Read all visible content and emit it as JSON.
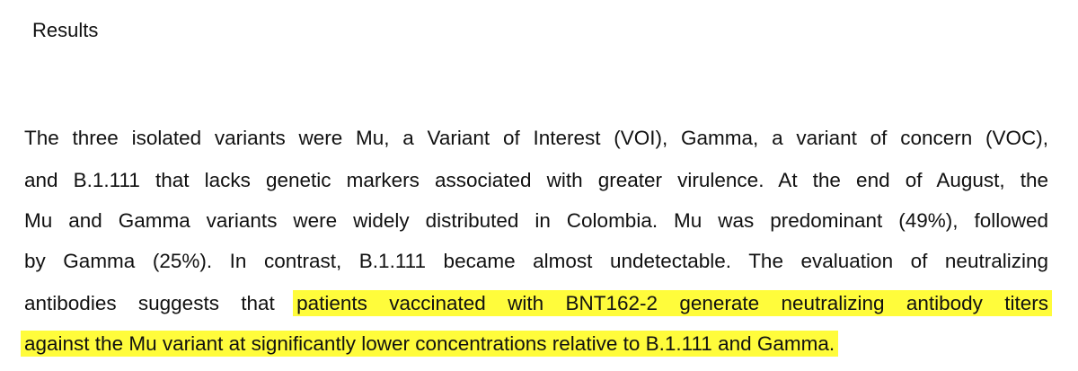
{
  "heading": "Results",
  "paragraph": {
    "lines": [
      {
        "text": "The three isolated variants were Mu, a Variant of Interest (VOI), Gamma, a variant of concern (VOC),",
        "highlight": ""
      },
      {
        "text": "and B.1.111 that lacks genetic markers associated with greater virulence. At the end of August, the",
        "highlight": ""
      },
      {
        "text": "Mu and Gamma variants were widely distributed in Colombia. Mu was predominant (49%), followed",
        "highlight": ""
      },
      {
        "text": "by Gamma (25%). In contrast, B.1.111 became almost undetectable. The evaluation of neutralizing",
        "highlight": ""
      },
      {
        "text": "antibodies suggests that ",
        "highlight": "patients vaccinated with BNT162-2 generate neutralizing antibody titers"
      },
      {
        "text": "",
        "highlight": "against the Mu variant at significantly lower concentrations relative to B.1.111 and Gamma."
      }
    ]
  },
  "colors": {
    "highlight": "#fffc3b",
    "text": "#111111"
  }
}
